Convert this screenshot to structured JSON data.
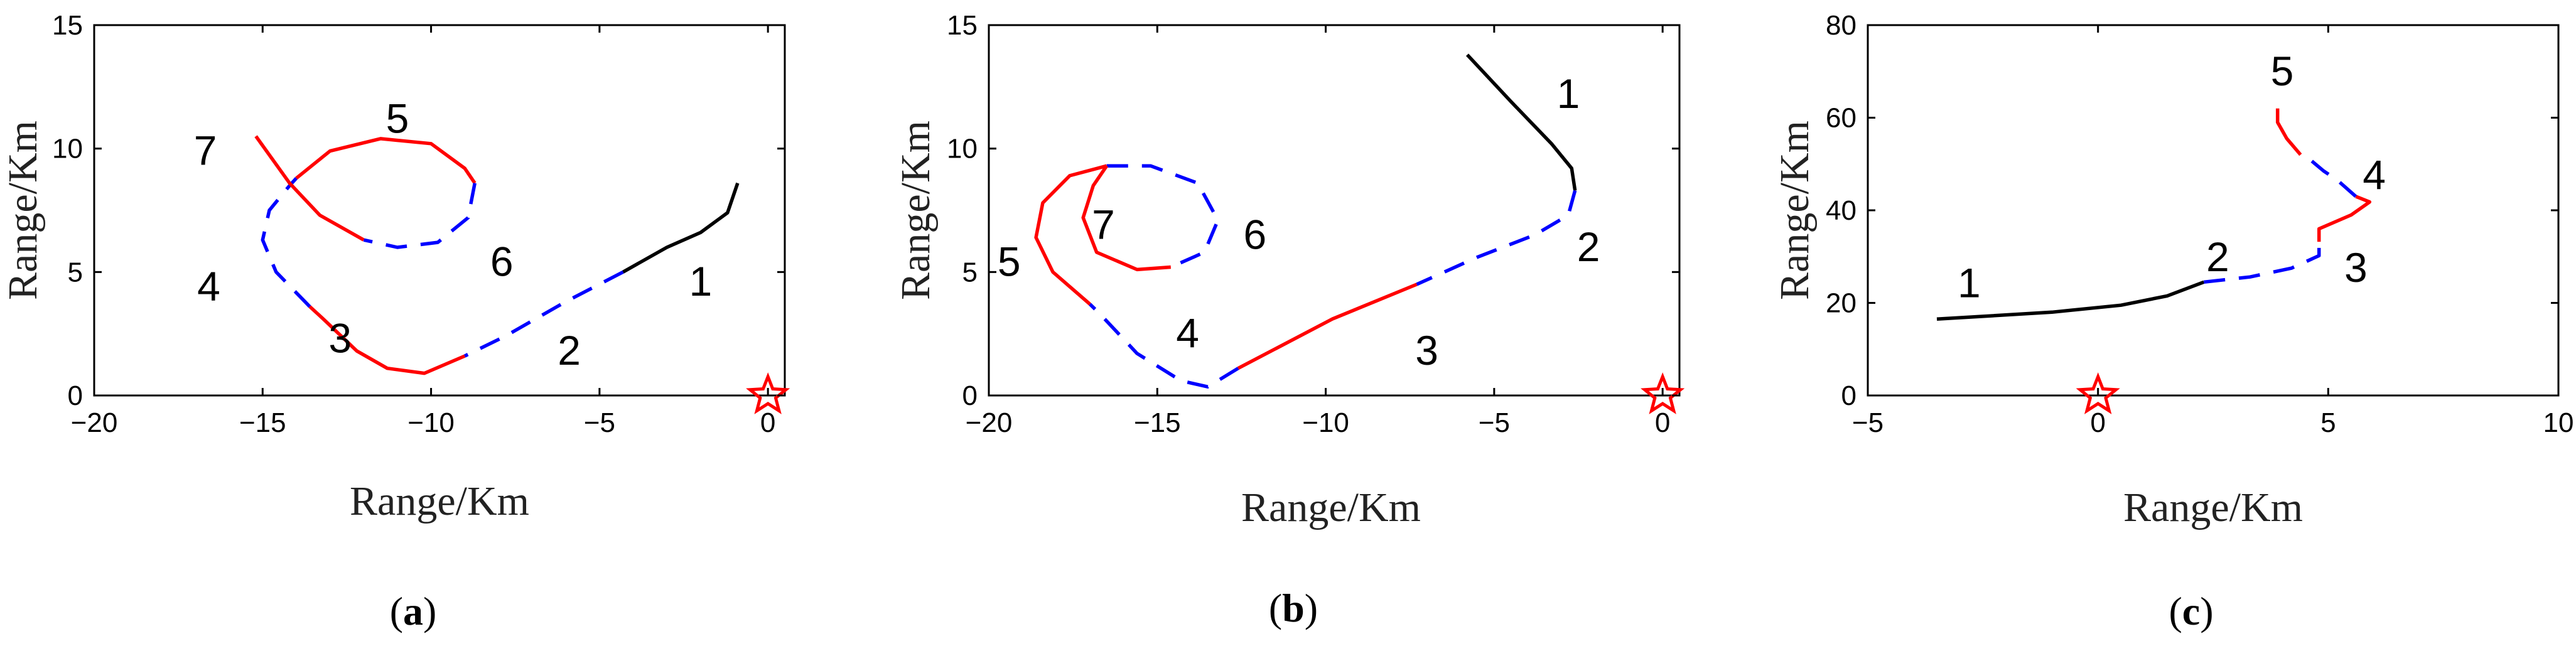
{
  "colors": {
    "black": "#000000",
    "red": "#ff0000",
    "blue": "#0000ff",
    "star": "#ff0000"
  },
  "chart_data": [
    {
      "id": "a",
      "type": "line",
      "panel_label": "a",
      "xlabel": "Range/Km",
      "ylabel": "Range/Km",
      "xlim": [
        -20,
        0.5
      ],
      "ylim": [
        0,
        15
      ],
      "xticks": [
        -20,
        -15,
        -10,
        -5,
        0
      ],
      "yticks": [
        0,
        5,
        10,
        15
      ],
      "marker": {
        "symbol": "star",
        "x": 0,
        "y": 0
      },
      "segments": [
        {
          "name": "1",
          "color": "#000000",
          "dashed": false,
          "points": [
            [
              -0.9,
              8.6
            ],
            [
              -1.2,
              7.4
            ],
            [
              -2.0,
              6.6
            ],
            [
              -3.0,
              6.0
            ],
            [
              -4.3,
              5.0
            ]
          ]
        },
        {
          "name": "2",
          "color": "#0000ff",
          "dashed": true,
          "points": [
            [
              -4.3,
              5.0
            ],
            [
              -6.0,
              3.8
            ],
            [
              -7.8,
              2.4
            ],
            [
              -9.0,
              1.6
            ]
          ]
        },
        {
          "name": "3",
          "color": "#ff0000",
          "dashed": false,
          "points": [
            [
              -9.0,
              1.6
            ],
            [
              -10.2,
              0.9
            ],
            [
              -11.3,
              1.1
            ],
            [
              -12.2,
              1.8
            ],
            [
              -13.2,
              3.1
            ],
            [
              -13.6,
              3.6
            ]
          ]
        },
        {
          "name": "4",
          "color": "#0000ff",
          "dashed": true,
          "points": [
            [
              -13.6,
              3.6
            ],
            [
              -14.6,
              5.0
            ],
            [
              -15.0,
              6.3
            ],
            [
              -14.8,
              7.5
            ],
            [
              -14.2,
              8.5
            ],
            [
              -14.0,
              8.8
            ]
          ]
        },
        {
          "name": "5",
          "color": "#ff0000",
          "dashed": false,
          "points": [
            [
              -14.0,
              8.8
            ],
            [
              -13.0,
              9.9
            ],
            [
              -11.5,
              10.4
            ],
            [
              -10.0,
              10.2
            ],
            [
              -9.0,
              9.2
            ],
            [
              -8.7,
              8.6
            ]
          ]
        },
        {
          "name": "6",
          "color": "#0000ff",
          "dashed": true,
          "points": [
            [
              -8.7,
              8.6
            ],
            [
              -8.9,
              7.2
            ],
            [
              -9.8,
              6.2
            ],
            [
              -11.0,
              6.0
            ],
            [
              -12.0,
              6.3
            ]
          ]
        },
        {
          "name": "7",
          "color": "#ff0000",
          "dashed": false,
          "points": [
            [
              -12.0,
              6.3
            ],
            [
              -13.3,
              7.3
            ],
            [
              -14.2,
              8.6
            ],
            [
              -15.2,
              10.5
            ]
          ]
        }
      ],
      "segment_labels": [
        {
          "text": "1",
          "x": -2.0,
          "y": 4.6
        },
        {
          "text": "2",
          "x": -5.9,
          "y": 1.8
        },
        {
          "text": "3",
          "x": -12.7,
          "y": 2.3
        },
        {
          "text": "4",
          "x": -16.6,
          "y": 4.4
        },
        {
          "text": "5",
          "x": -11.0,
          "y": 11.2
        },
        {
          "text": "6",
          "x": -7.9,
          "y": 5.4
        },
        {
          "text": "7",
          "x": -16.7,
          "y": 9.9
        }
      ]
    },
    {
      "id": "b",
      "type": "line",
      "panel_label": "b",
      "xlabel": "Range/Km",
      "ylabel": "Range/Km",
      "xlim": [
        -20,
        0.5
      ],
      "ylim": [
        0,
        15
      ],
      "xticks": [
        -20,
        -15,
        -10,
        -5,
        0
      ],
      "yticks": [
        0,
        5,
        10,
        15
      ],
      "marker": {
        "symbol": "star",
        "x": 0,
        "y": 0
      },
      "segments": [
        {
          "name": "1",
          "color": "#000000",
          "dashed": false,
          "points": [
            [
              -5.8,
              13.8
            ],
            [
              -4.5,
              11.9
            ],
            [
              -3.3,
              10.2
            ],
            [
              -2.7,
              9.2
            ],
            [
              -2.6,
              8.3
            ]
          ]
        },
        {
          "name": "2",
          "color": "#0000ff",
          "dashed": true,
          "points": [
            [
              -2.6,
              8.3
            ],
            [
              -2.8,
              7.3
            ],
            [
              -3.8,
              6.5
            ],
            [
              -5.5,
              5.6
            ],
            [
              -7.3,
              4.5
            ]
          ]
        },
        {
          "name": "3",
          "color": "#ff0000",
          "dashed": false,
          "points": [
            [
              -7.3,
              4.5
            ],
            [
              -9.8,
              3.1
            ],
            [
              -12.6,
              1.1
            ]
          ]
        },
        {
          "name": "4",
          "color": "#0000ff",
          "dashed": true,
          "points": [
            [
              -12.6,
              1.1
            ],
            [
              -13.5,
              0.35
            ],
            [
              -14.3,
              0.6
            ],
            [
              -15.6,
              1.7
            ],
            [
              -16.7,
              3.3
            ],
            [
              -17.0,
              3.7
            ]
          ]
        },
        {
          "name": "5",
          "color": "#ff0000",
          "dashed": false,
          "points": [
            [
              -17.0,
              3.7
            ],
            [
              -18.1,
              5.0
            ],
            [
              -18.6,
              6.4
            ],
            [
              -18.4,
              7.8
            ],
            [
              -17.6,
              8.9
            ],
            [
              -16.5,
              9.3
            ]
          ]
        },
        {
          "name": "6",
          "color": "#0000ff",
          "dashed": true,
          "points": [
            [
              -16.5,
              9.3
            ],
            [
              -15.2,
              9.3
            ],
            [
              -13.8,
              8.6
            ],
            [
              -13.2,
              7.1
            ],
            [
              -13.6,
              5.8
            ],
            [
              -14.6,
              5.2
            ]
          ]
        },
        {
          "name": "7",
          "color": "#ff0000",
          "dashed": false,
          "points": [
            [
              -14.6,
              5.2
            ],
            [
              -15.6,
              5.1
            ],
            [
              -16.8,
              5.8
            ],
            [
              -17.2,
              7.2
            ],
            [
              -16.9,
              8.5
            ],
            [
              -16.5,
              9.3
            ]
          ]
        }
      ],
      "segment_labels": [
        {
          "text": "1",
          "x": -2.8,
          "y": 12.2
        },
        {
          "text": "2",
          "x": -2.2,
          "y": 6.0
        },
        {
          "text": "3",
          "x": -7.0,
          "y": 1.8
        },
        {
          "text": "4",
          "x": -14.1,
          "y": 2.5
        },
        {
          "text": "5",
          "x": -19.4,
          "y": 5.4
        },
        {
          "text": "6",
          "x": -12.1,
          "y": 6.5
        },
        {
          "text": "7",
          "x": -16.6,
          "y": 6.9
        }
      ]
    },
    {
      "id": "c",
      "type": "line",
      "panel_label": "c",
      "xlabel": "Range/Km",
      "ylabel": "Range/Km",
      "xlim": [
        -5,
        10
      ],
      "ylim": [
        0,
        80
      ],
      "xticks": [
        -5,
        0,
        5,
        10
      ],
      "yticks": [
        0,
        20,
        40,
        60,
        80
      ],
      "marker": {
        "symbol": "star",
        "x": 0,
        "y": 0
      },
      "segments": [
        {
          "name": "1",
          "color": "#000000",
          "dashed": false,
          "points": [
            [
              -3.5,
              16.5
            ],
            [
              -1.0,
              18.0
            ],
            [
              0.5,
              19.5
            ],
            [
              1.5,
              21.5
            ],
            [
              2.3,
              24.5
            ]
          ]
        },
        {
          "name": "2",
          "color": "#0000ff",
          "dashed": true,
          "points": [
            [
              2.3,
              24.5
            ],
            [
              3.3,
              25.6
            ],
            [
              4.2,
              27.5
            ],
            [
              4.8,
              30.2
            ],
            [
              4.8,
              33.2
            ]
          ]
        },
        {
          "name": "3",
          "color": "#ff0000",
          "dashed": false,
          "points": [
            [
              4.8,
              33.2
            ],
            [
              4.8,
              36.0
            ],
            [
              5.5,
              39.0
            ],
            [
              5.9,
              41.8
            ],
            [
              5.6,
              43.0
            ]
          ]
        },
        {
          "name": "4",
          "color": "#0000ff",
          "dashed": true,
          "points": [
            [
              5.6,
              43.0
            ],
            [
              5.2,
              46.5
            ],
            [
              4.9,
              48.5
            ],
            [
              4.6,
              51.0
            ],
            [
              4.4,
              52.0
            ]
          ]
        },
        {
          "name": "5",
          "color": "#ff0000",
          "dashed": false,
          "points": [
            [
              4.4,
              52.0
            ],
            [
              4.1,
              55.5
            ],
            [
              3.9,
              59.0
            ],
            [
              3.9,
              62.0
            ]
          ]
        }
      ],
      "segment_labels": [
        {
          "text": "1",
          "x": -2.8,
          "y": 24.2
        },
        {
          "text": "2",
          "x": 2.6,
          "y": 29.8
        },
        {
          "text": "3",
          "x": 5.6,
          "y": 27.5
        },
        {
          "text": "4",
          "x": 6.0,
          "y": 47.5
        },
        {
          "text": "5",
          "x": 4.0,
          "y": 70.0
        }
      ]
    }
  ]
}
